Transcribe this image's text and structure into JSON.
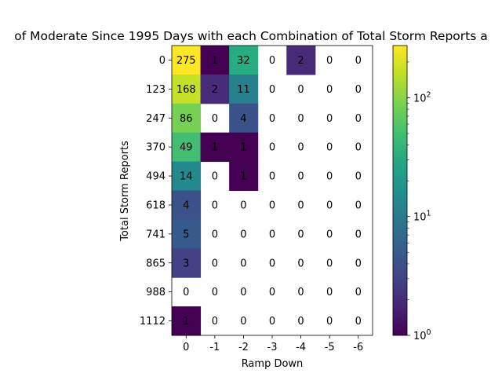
{
  "chart_data": {
    "type": "heatmap",
    "title": "of Moderate Since 1995 Days with each Combination of Total Storm Reports a",
    "xlabel": "Ramp Down",
    "ylabel": "Total Storm Reports",
    "x_categories": [
      "0",
      "-1",
      "-2",
      "-3",
      "-4",
      "-5",
      "-6"
    ],
    "y_categories": [
      "0",
      "123",
      "247",
      "370",
      "494",
      "618",
      "741",
      "865",
      "988",
      "1112"
    ],
    "values": [
      [
        275,
        1,
        32,
        0,
        2,
        0,
        0
      ],
      [
        168,
        2,
        11,
        0,
        0,
        0,
        0
      ],
      [
        86,
        0,
        4,
        0,
        0,
        0,
        0
      ],
      [
        49,
        1,
        1,
        0,
        0,
        0,
        0
      ],
      [
        14,
        0,
        1,
        0,
        0,
        0,
        0
      ],
      [
        4,
        0,
        0,
        0,
        0,
        0,
        0
      ],
      [
        5,
        0,
        0,
        0,
        0,
        0,
        0
      ],
      [
        3,
        0,
        0,
        0,
        0,
        0,
        0
      ],
      [
        0,
        0,
        0,
        0,
        0,
        0,
        0
      ],
      [
        1,
        0,
        0,
        0,
        0,
        0,
        0
      ]
    ],
    "zero_cells": "blank (white)",
    "colormap": "viridis",
    "color_scale": "log",
    "colorbar": {
      "range": [
        1,
        275
      ],
      "ticks": [
        {
          "value": 1,
          "base": "10",
          "exp": "0"
        },
        {
          "value": 10,
          "base": "10",
          "exp": "1"
        },
        {
          "value": 100,
          "base": "10",
          "exp": "2"
        }
      ]
    },
    "grid": false,
    "legend": "colorbar-right"
  }
}
